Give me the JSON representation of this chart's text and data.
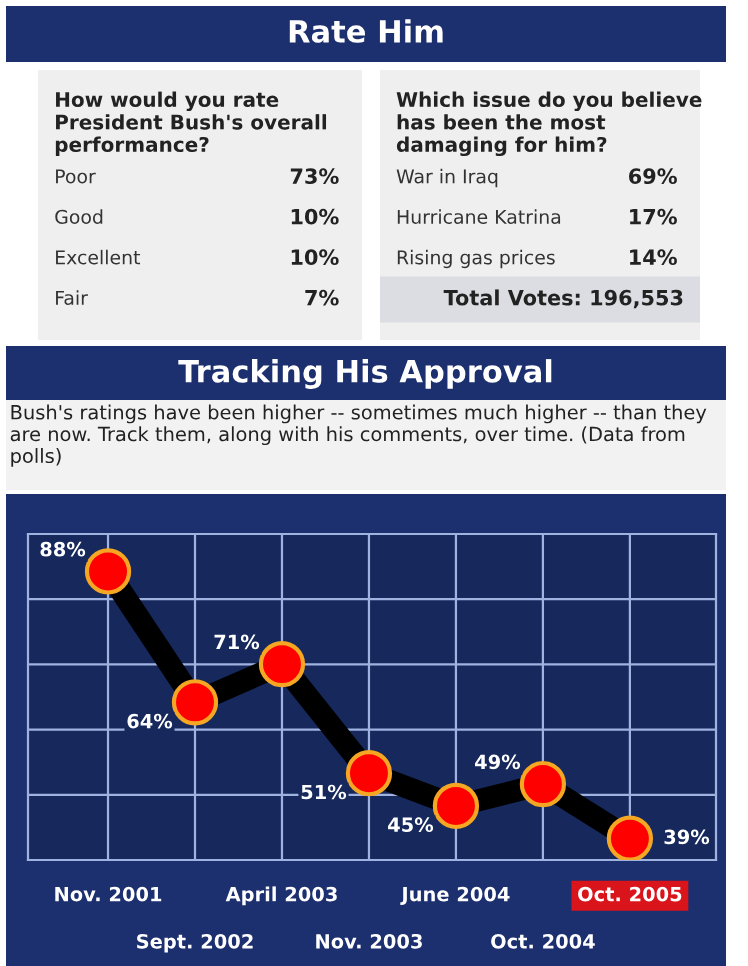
{
  "chart_data": [
    {
      "type": "other",
      "title": "Rate Him",
      "subtitle": "How would you rate President Bush's overall performance?",
      "categories": [
        "Poor",
        "Good",
        "Excellent",
        "Fair"
      ],
      "values": [
        73,
        10,
        10,
        7
      ],
      "value_labels": [
        "73%",
        "10%",
        "10%",
        "7%"
      ]
    },
    {
      "type": "other",
      "title": "Which issue do you believe has been the most damaging for him?",
      "categories": [
        "War in Iraq",
        "Hurricane Katrina",
        "Rising gas prices"
      ],
      "values": [
        69,
        17,
        14
      ],
      "value_labels": [
        "69%",
        "17%",
        "14%"
      ],
      "annotations": [
        "Total Votes: 196,553"
      ]
    },
    {
      "type": "line",
      "title": "Tracking His Approval",
      "subtitle": "Bush's ratings have been higher -- sometimes much higher -- than they are now. Track them, along with his comments, over time. (Data from polls)",
      "categories": [
        "Nov. 2001",
        "Sept. 2002",
        "April 2003",
        "Nov. 2003",
        "June 2004",
        "Oct. 2004",
        "Oct. 2005"
      ],
      "series": [
        {
          "color": "#000000",
          "values": [
            88,
            64,
            71,
            51,
            45,
            49,
            39
          ],
          "value_labels": [
            "88%",
            "64%",
            "71%",
            "51%",
            "45%",
            "49%",
            "39%"
          ]
        }
      ],
      "marker": "circle",
      "line_style": "solid",
      "grid": "x",
      "tick_labels": "x"
    }
  ]
}
